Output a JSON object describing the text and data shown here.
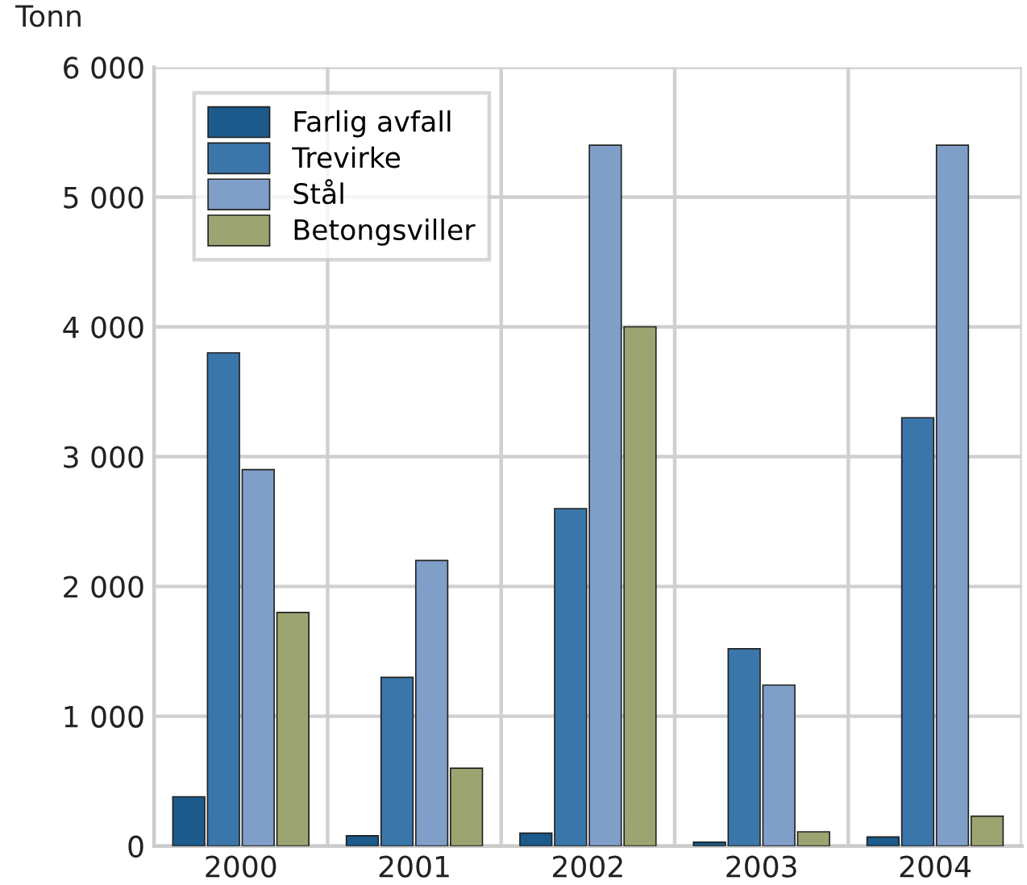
{
  "chart_data": {
    "type": "bar",
    "ylabel": "Tonn",
    "categories": [
      "2000",
      "2001",
      "2002",
      "2003",
      "2004"
    ],
    "series": [
      {
        "name": "Farlig avfall",
        "color": "#1b5a8a",
        "values": [
          380,
          80,
          100,
          30,
          70
        ]
      },
      {
        "name": "Trevirke",
        "color": "#3b76aa",
        "values": [
          3800,
          1300,
          2600,
          1520,
          3300
        ]
      },
      {
        "name": "Stål",
        "color": "#809fc8",
        "values": [
          2900,
          2200,
          5400,
          1240,
          5400
        ]
      },
      {
        "name": "Betongsviller",
        "color": "#9ca472",
        "values": [
          1800,
          600,
          4000,
          110,
          230
        ]
      }
    ],
    "ylim": [
      0,
      6000
    ],
    "yticks": [
      0,
      {
        "value": 1000,
        "label": "1 000"
      },
      {
        "value": 2000,
        "label": "2 000"
      },
      {
        "value": 3000,
        "label": "3 000"
      },
      {
        "value": 4000,
        "label": "4 000"
      },
      {
        "value": 5000,
        "label": "5 000"
      },
      {
        "value": 6000,
        "label": "6 000"
      }
    ],
    "grid": true,
    "legend": "top left"
  }
}
